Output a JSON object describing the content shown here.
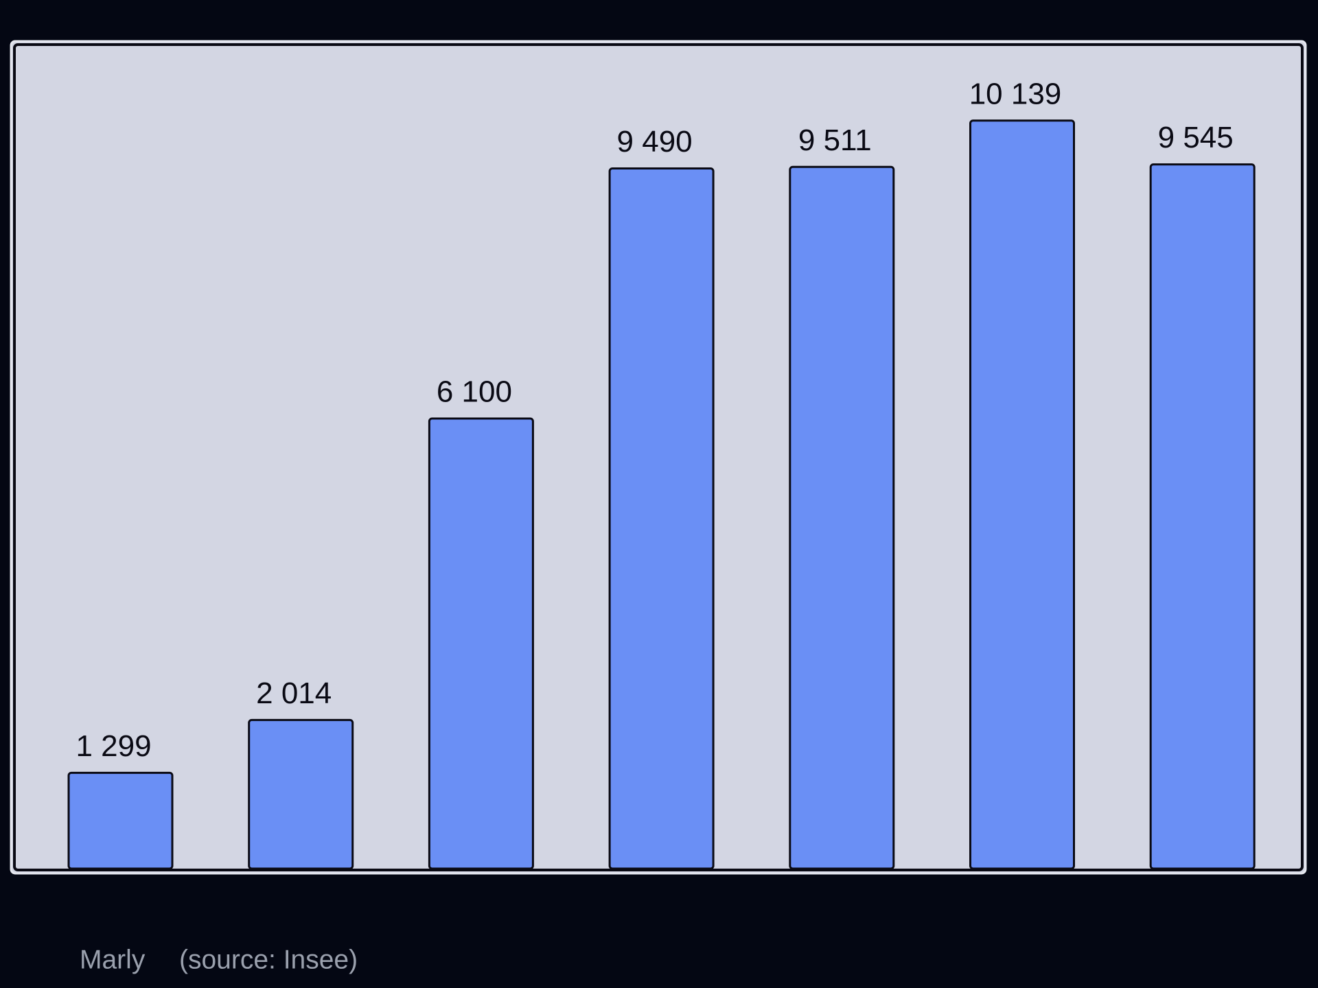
{
  "chart_data": {
    "type": "bar",
    "categories": [
      null,
      null,
      null,
      null,
      null,
      null,
      null
    ],
    "values": [
      1299,
      2014,
      6100,
      9490,
      9511,
      10139,
      9545
    ],
    "value_labels": [
      "1 299",
      "2 014",
      "6 100",
      "9 490",
      "9 511",
      "10 139",
      "9 545"
    ],
    "color": "#6a8ff5",
    "ylim": [
      0,
      11150
    ],
    "caption": "Marly",
    "source": "(source: Insee)"
  }
}
